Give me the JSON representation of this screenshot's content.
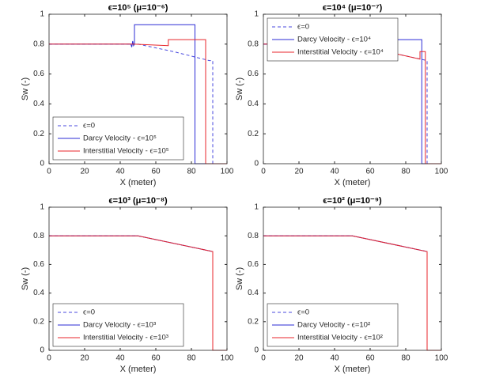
{
  "chart_data": [
    {
      "type": "line",
      "title": "ϵ=10⁵ (μ=10⁻⁶)",
      "x_label": "X (meter)",
      "y_label": "Sw (-)",
      "xlim": [
        0,
        100
      ],
      "xticks": [
        0,
        20,
        40,
        60,
        80,
        100
      ],
      "ylim": [
        0,
        1
      ],
      "yticks": [
        0,
        0.2,
        0.4,
        0.6,
        0.8,
        1
      ],
      "legend_location": "lower left",
      "series": [
        {
          "name": "ϵ=0",
          "color": "#4a4adf",
          "dashed": true,
          "x": [
            0,
            50,
            70,
            90,
            92,
            92,
            100
          ],
          "values": [
            0.8,
            0.8,
            0.75,
            0.69,
            0.69,
            0,
            0
          ]
        },
        {
          "name": "Darcy Velocity - ϵ=10⁵",
          "color": "#2b2bd6",
          "dashed": false,
          "x": [
            0,
            46,
            46.5,
            47,
            47.5,
            48,
            48,
            82,
            82,
            100
          ],
          "values": [
            0.8,
            0.8,
            0.78,
            0.82,
            0.79,
            0.8,
            0.93,
            0.93,
            0,
            0
          ]
        },
        {
          "name": "Interstitial Velocity - ϵ=10⁵",
          "color": "#e8262b",
          "dashed": false,
          "x": [
            0,
            47,
            67,
            67,
            88,
            88,
            100
          ],
          "values": [
            0.8,
            0.8,
            0.79,
            0.83,
            0.83,
            0,
            0
          ]
        }
      ]
    },
    {
      "type": "line",
      "title": "ϵ=10⁴ (μ=10⁻⁷)",
      "x_label": "X (meter)",
      "y_label": "Sw (-)",
      "xlim": [
        0,
        100
      ],
      "xticks": [
        0,
        20,
        40,
        60,
        80,
        100
      ],
      "ylim": [
        0,
        1
      ],
      "yticks": [
        0,
        0.2,
        0.4,
        0.6,
        0.8,
        1
      ],
      "legend_location": "upper left",
      "series": [
        {
          "name": "ϵ=0",
          "color": "#4a4adf",
          "dashed": true,
          "x": [
            0,
            50,
            92,
            92,
            100
          ],
          "values": [
            0.8,
            0.8,
            0.69,
            0,
            0
          ]
        },
        {
          "name": "Darcy Velocity - ϵ=10⁴",
          "color": "#2b2bd6",
          "dashed": false,
          "x": [
            0,
            50,
            70,
            70,
            89,
            89,
            100
          ],
          "values": [
            0.8,
            0.8,
            0.76,
            0.83,
            0.83,
            0,
            0
          ]
        },
        {
          "name": "Interstitial Velocity - ϵ=10⁴",
          "color": "#e8262b",
          "dashed": false,
          "x": [
            0,
            50,
            88,
            88,
            91,
            91,
            100
          ],
          "values": [
            0.8,
            0.8,
            0.7,
            0.75,
            0.75,
            0,
            0
          ]
        }
      ]
    },
    {
      "type": "line",
      "title": "ϵ=10³ (μ=10⁻⁸)",
      "x_label": "X (meter)",
      "y_label": "Sw (-)",
      "xlim": [
        0,
        100
      ],
      "xticks": [
        0,
        20,
        40,
        60,
        80,
        100
      ],
      "ylim": [
        0,
        1
      ],
      "yticks": [
        0,
        0.2,
        0.4,
        0.6,
        0.8,
        1
      ],
      "legend_location": "lower left",
      "series": [
        {
          "name": "ϵ=0",
          "color": "#4a4adf",
          "dashed": true,
          "x": [
            0,
            50,
            92,
            92,
            100
          ],
          "values": [
            0.8,
            0.8,
            0.69,
            0,
            0
          ]
        },
        {
          "name": "Darcy Velocity - ϵ=10³",
          "color": "#2b2bd6",
          "dashed": false,
          "x": [
            0,
            50,
            92,
            92,
            100
          ],
          "values": [
            0.8,
            0.8,
            0.69,
            0,
            0
          ]
        },
        {
          "name": "Interstitial Velocity - ϵ=10³",
          "color": "#e8262b",
          "dashed": false,
          "x": [
            0,
            50,
            92,
            92,
            100
          ],
          "values": [
            0.8,
            0.8,
            0.69,
            0,
            0
          ]
        }
      ]
    },
    {
      "type": "line",
      "title": "ϵ=10² (μ=10⁻⁹)",
      "x_label": "X (meter)",
      "y_label": "Sw (-)",
      "xlim": [
        0,
        100
      ],
      "xticks": [
        0,
        20,
        40,
        60,
        80,
        100
      ],
      "ylim": [
        0,
        1
      ],
      "yticks": [
        0,
        0.2,
        0.4,
        0.6,
        0.8,
        1
      ],
      "legend_location": "lower left",
      "series": [
        {
          "name": "ϵ=0",
          "color": "#4a4adf",
          "dashed": true,
          "x": [
            0,
            50,
            92,
            92,
            100
          ],
          "values": [
            0.8,
            0.8,
            0.69,
            0,
            0
          ]
        },
        {
          "name": "Darcy Velocity - ϵ=10²",
          "color": "#2b2bd6",
          "dashed": false,
          "x": [
            0,
            50,
            92,
            92,
            100
          ],
          "values": [
            0.8,
            0.8,
            0.69,
            0,
            0
          ]
        },
        {
          "name": "Interstitial Velocity - ϵ=10²",
          "color": "#e8262b",
          "dashed": false,
          "x": [
            0,
            50,
            92,
            92,
            100
          ],
          "values": [
            0.8,
            0.8,
            0.69,
            0,
            0
          ]
        }
      ]
    }
  ]
}
